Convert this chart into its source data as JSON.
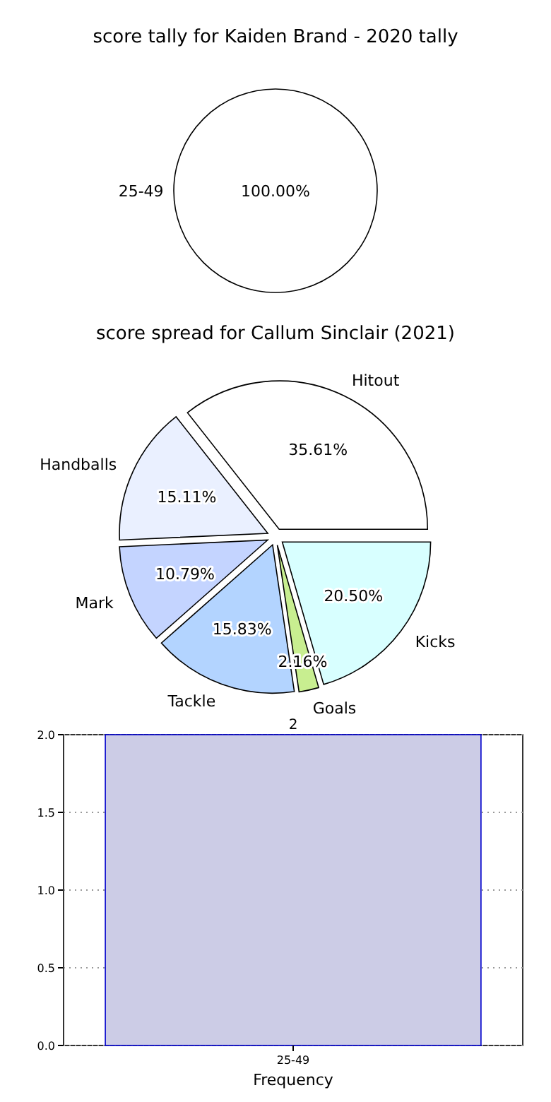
{
  "chart_data": [
    {
      "type": "pie",
      "title": "score tally for Kaiden Brand - 2020 tally",
      "categories": [
        "25-49"
      ],
      "values": [
        100
      ],
      "value_labels": [
        "100.00%"
      ],
      "colors": [
        "#ffffff"
      ]
    },
    {
      "type": "pie",
      "title": "score spread for Callum Sinclair (2021)",
      "categories": [
        "Hitout",
        "Handballs",
        "Mark",
        "Tackle",
        "Goals",
        "Kicks"
      ],
      "values": [
        35.61,
        15.11,
        10.79,
        15.83,
        2.16,
        20.5
      ],
      "value_labels": [
        "35.61%",
        "15.11%",
        "10.79%",
        "15.83%",
        "2.16%",
        "20.50%"
      ],
      "colors": [
        "#ffffff",
        "#eaf0ff",
        "#c4d4ff",
        "#b3d4ff",
        "#c8ee90",
        "#d8ffff"
      ]
    },
    {
      "type": "bar",
      "xlabel": "Frequency",
      "categories": [
        "25-49"
      ],
      "values": [
        2
      ],
      "color": "#cccce6",
      "ylim": [
        0,
        2
      ],
      "yticks": [
        {
          "value": 0,
          "label": "0.0"
        },
        {
          "value": 0.5,
          "label": "0.5"
        },
        {
          "value": 1,
          "label": "1.0"
        },
        {
          "value": 1.5,
          "label": "1.5"
        },
        {
          "value": 2,
          "label": "2.0"
        }
      ],
      "grid": true,
      "data_labels": true
    }
  ]
}
